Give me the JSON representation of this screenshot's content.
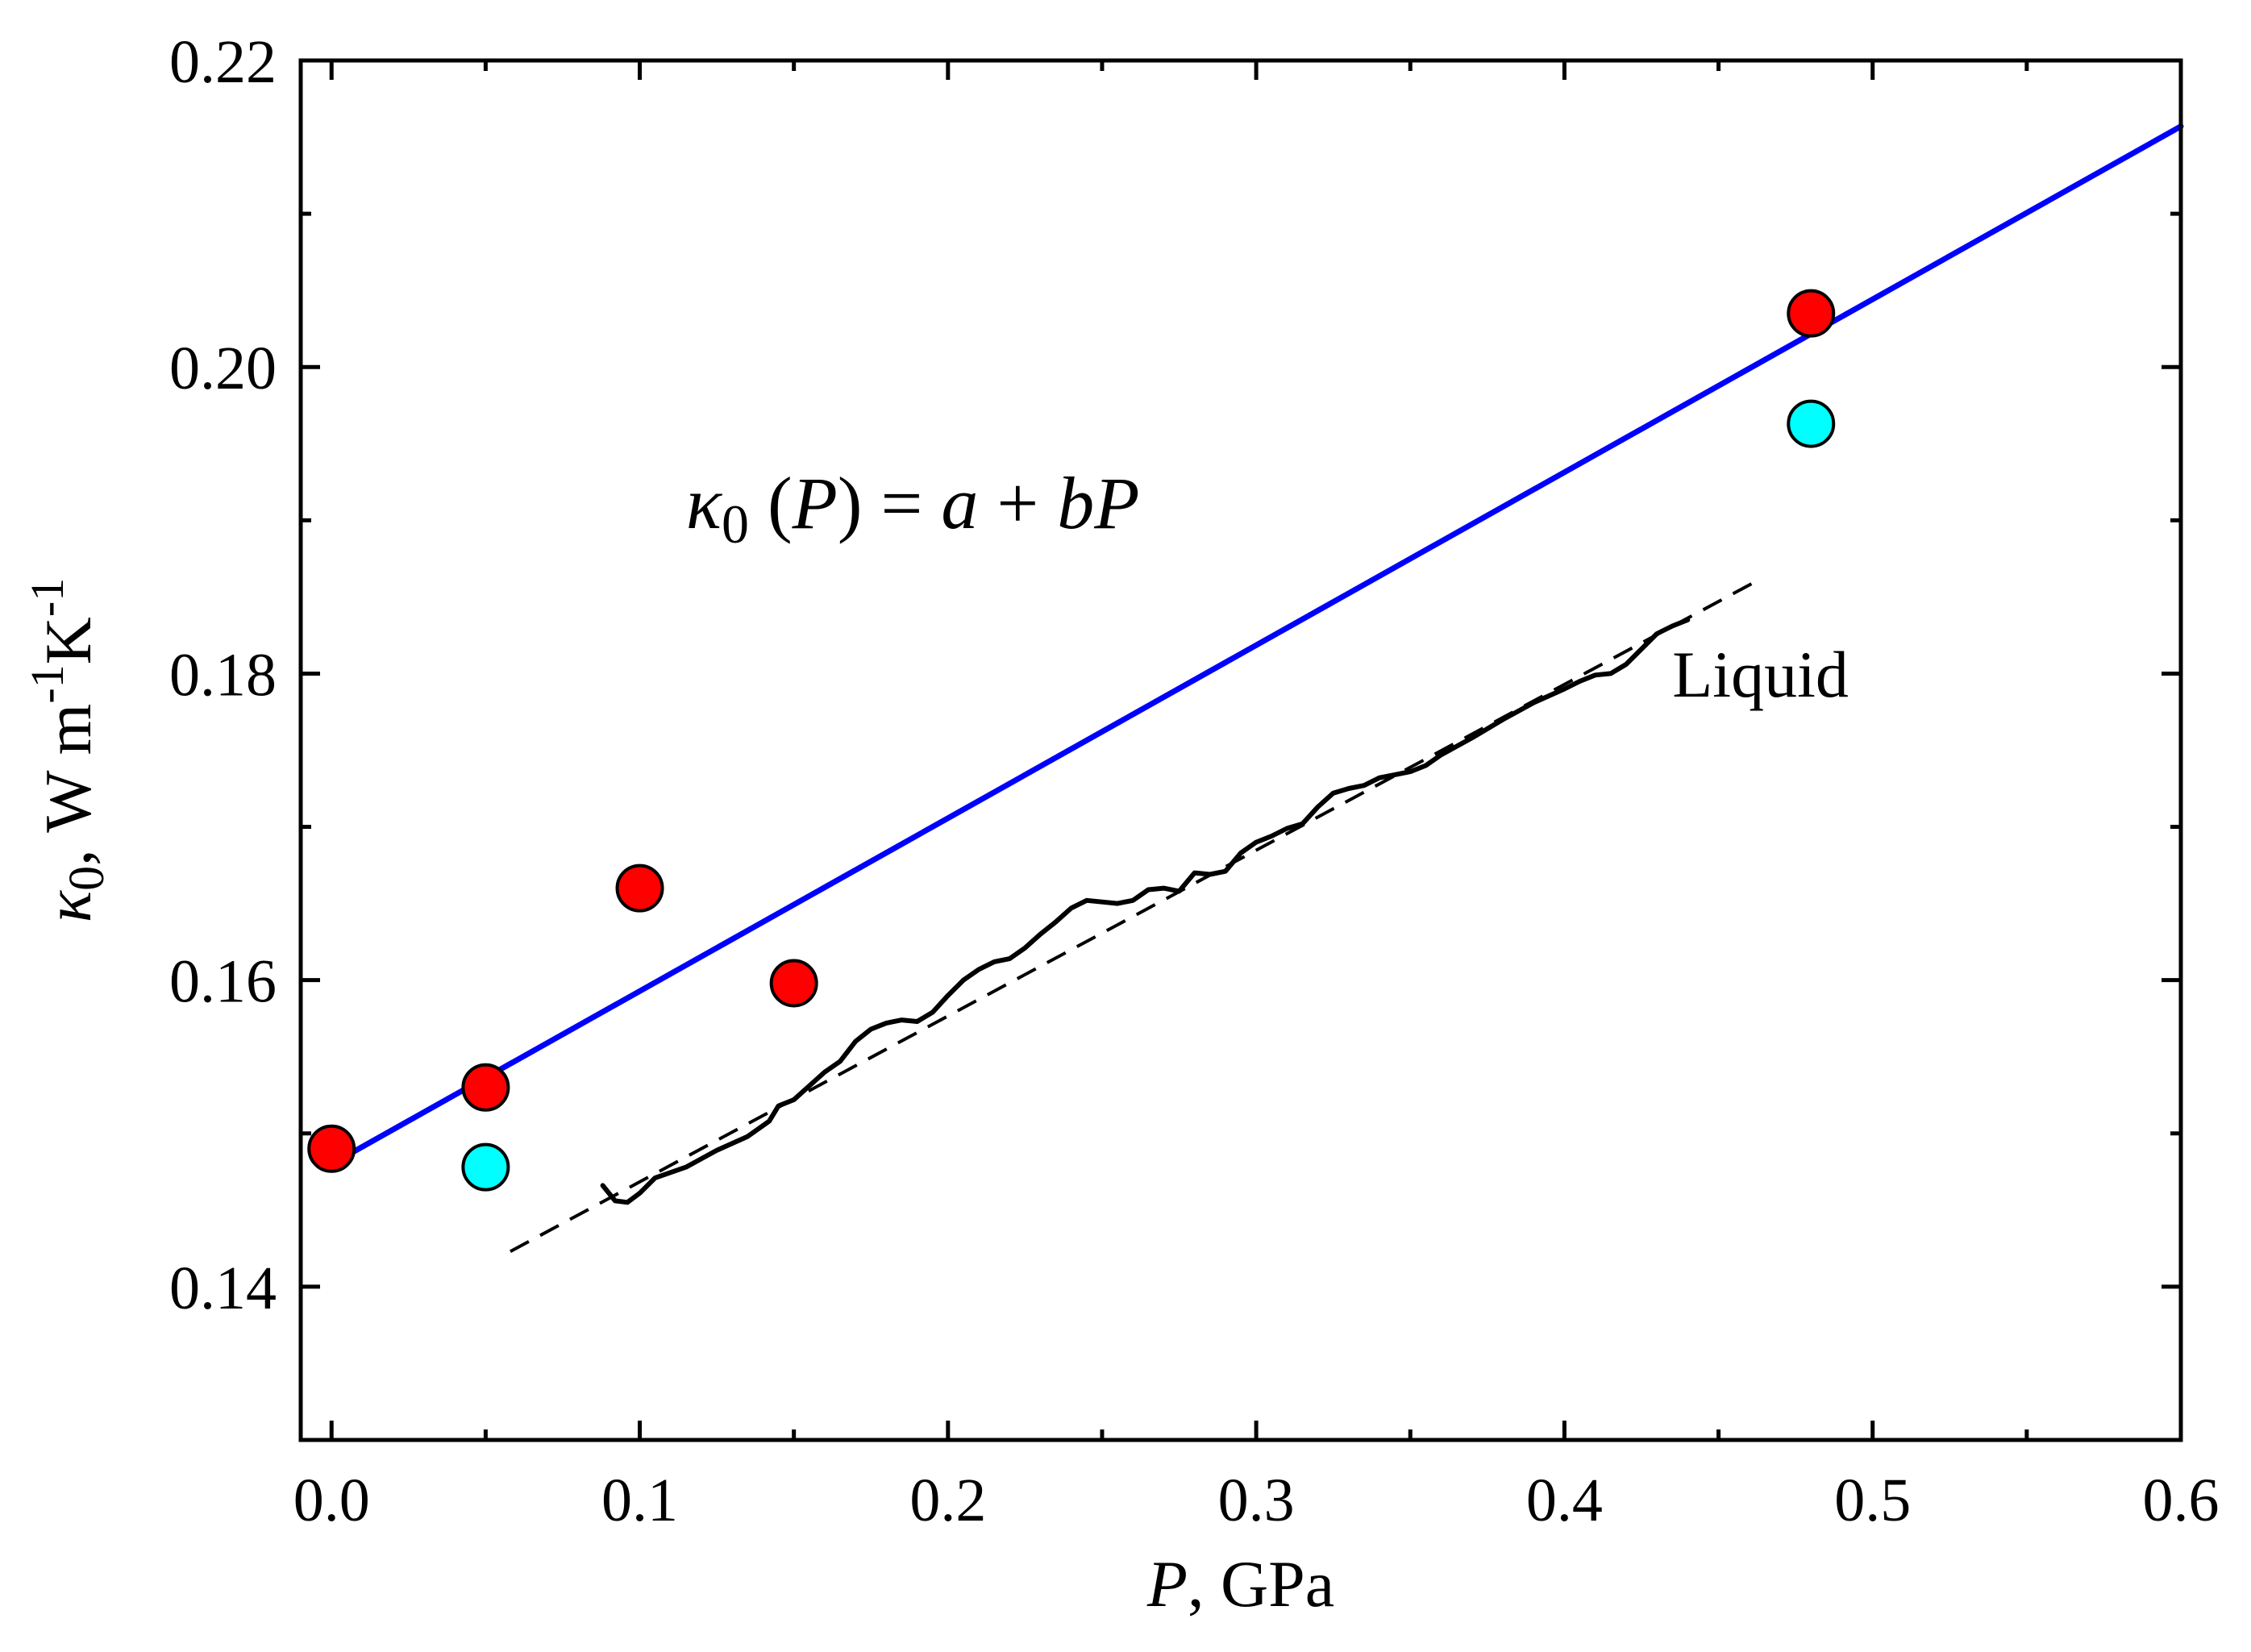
{
  "chart_data": {
    "type": "scatter",
    "title": "",
    "xlabel": {
      "var": "P",
      "unit": ", GPa"
    },
    "ylabel": {
      "var": "κ",
      "sub": "0",
      "unit": ", W m",
      "sup1": "-1",
      "k": "K",
      "sup2": "-1"
    },
    "xlim": [
      -0.01,
      0.6
    ],
    "ylim": [
      0.13,
      0.22
    ],
    "xticks": [
      {
        "v": 0.0,
        "label": "0.0"
      },
      {
        "v": 0.1,
        "label": "0.1"
      },
      {
        "v": 0.2,
        "label": "0.2"
      },
      {
        "v": 0.3,
        "label": "0.3"
      },
      {
        "v": 0.4,
        "label": "0.4"
      },
      {
        "v": 0.5,
        "label": "0.5"
      },
      {
        "v": 0.6,
        "label": "0.6"
      }
    ],
    "xminor": [
      0.05,
      0.15,
      0.25,
      0.35,
      0.45,
      0.55
    ],
    "yticks": [
      {
        "v": 0.14,
        "label": "0.14"
      },
      {
        "v": 0.16,
        "label": "0.16"
      },
      {
        "v": 0.18,
        "label": "0.18"
      },
      {
        "v": 0.2,
        "label": "0.20"
      },
      {
        "v": 0.22,
        "label": "0.22"
      }
    ],
    "yminor": [
      0.13,
      0.15,
      0.17,
      0.19,
      0.21
    ],
    "grid": false,
    "series": [
      {
        "name": "red points",
        "kind": "scatter",
        "color": "#ff0000",
        "points": [
          [
            0.0,
            0.149
          ],
          [
            0.05,
            0.153
          ],
          [
            0.1,
            0.166
          ],
          [
            0.15,
            0.1598
          ],
          [
            0.48,
            0.2035
          ]
        ]
      },
      {
        "name": "cyan points",
        "kind": "scatter",
        "color": "#00ffff",
        "points": [
          [
            0.05,
            0.1478
          ],
          [
            0.48,
            0.1963
          ]
        ]
      },
      {
        "name": "linear fit",
        "kind": "line",
        "color": "#0000ff",
        "points": [
          [
            0.0,
            0.148
          ],
          [
            0.6,
            0.2157
          ]
        ]
      },
      {
        "name": "liquid",
        "kind": "line",
        "color": "#000000",
        "points": [
          [
            0.088,
            0.1466
          ],
          [
            0.092,
            0.1456
          ],
          [
            0.096,
            0.1455
          ],
          [
            0.1,
            0.1461
          ],
          [
            0.105,
            0.1471
          ],
          [
            0.115,
            0.1478
          ],
          [
            0.125,
            0.1489
          ],
          [
            0.135,
            0.1498
          ],
          [
            0.142,
            0.1508
          ],
          [
            0.145,
            0.1518
          ],
          [
            0.15,
            0.1522
          ],
          [
            0.155,
            0.1531
          ],
          [
            0.16,
            0.154
          ],
          [
            0.165,
            0.1547
          ],
          [
            0.17,
            0.156
          ],
          [
            0.175,
            0.1568
          ],
          [
            0.18,
            0.1572
          ],
          [
            0.185,
            0.1574
          ],
          [
            0.19,
            0.1573
          ],
          [
            0.195,
            0.1579
          ],
          [
            0.2,
            0.159
          ],
          [
            0.205,
            0.16
          ],
          [
            0.21,
            0.1607
          ],
          [
            0.215,
            0.1612
          ],
          [
            0.22,
            0.1614
          ],
          [
            0.225,
            0.1621
          ],
          [
            0.23,
            0.163
          ],
          [
            0.235,
            0.1638
          ],
          [
            0.24,
            0.1647
          ],
          [
            0.245,
            0.1652
          ],
          [
            0.25,
            0.1651
          ],
          [
            0.255,
            0.165
          ],
          [
            0.26,
            0.1652
          ],
          [
            0.265,
            0.1659
          ],
          [
            0.27,
            0.166
          ],
          [
            0.275,
            0.1658
          ],
          [
            0.28,
            0.167
          ],
          [
            0.285,
            0.1669
          ],
          [
            0.29,
            0.1671
          ],
          [
            0.295,
            0.1683
          ],
          [
            0.3,
            0.169
          ],
          [
            0.305,
            0.1694
          ],
          [
            0.31,
            0.1699
          ],
          [
            0.315,
            0.1702
          ],
          [
            0.32,
            0.1713
          ],
          [
            0.325,
            0.1722
          ],
          [
            0.33,
            0.1725
          ],
          [
            0.335,
            0.1727
          ],
          [
            0.34,
            0.1732
          ],
          [
            0.345,
            0.1734
          ],
          [
            0.35,
            0.1736
          ],
          [
            0.355,
            0.174
          ],
          [
            0.36,
            0.1747
          ],
          [
            0.37,
            0.1758
          ],
          [
            0.38,
            0.177
          ],
          [
            0.39,
            0.1781
          ],
          [
            0.4,
            0.179
          ],
          [
            0.405,
            0.1795
          ],
          [
            0.41,
            0.1799
          ],
          [
            0.415,
            0.18
          ],
          [
            0.42,
            0.1806
          ],
          [
            0.425,
            0.1816
          ],
          [
            0.43,
            0.1826
          ],
          [
            0.435,
            0.1831
          ],
          [
            0.44,
            0.1835
          ]
        ]
      },
      {
        "name": "liquid fit",
        "kind": "dashed-line",
        "color": "#000000",
        "points": [
          [
            0.058,
            0.1423
          ],
          [
            0.462,
            0.186
          ]
        ]
      }
    ],
    "annotations": [
      {
        "text": "Liquid",
        "x": 0.435,
        "y": 0.1785
      },
      {
        "equation": {
          "kappa": "κ",
          "sub": "0",
          "mid": " (",
          "p1": "P",
          "mid2": ") = ",
          "a": "a",
          "plus": " + ",
          "b": "b",
          "p2": "P"
        },
        "x": 0.115,
        "y": 0.1895
      }
    ]
  }
}
